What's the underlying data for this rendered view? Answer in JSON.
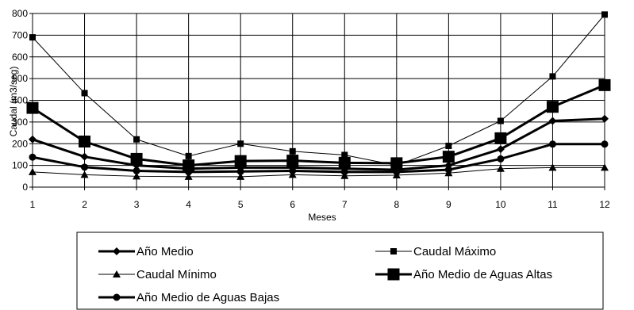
{
  "chart_data": {
    "type": "line",
    "xlabel": "Meses",
    "ylabel": "Caudal (m3/seg)",
    "x": [
      1,
      2,
      3,
      4,
      5,
      6,
      7,
      8,
      9,
      10,
      11,
      12
    ],
    "xlim": [
      1,
      12
    ],
    "ylim": [
      0,
      800
    ],
    "yticks": [
      0,
      100,
      200,
      300,
      400,
      500,
      600,
      700,
      800
    ],
    "grid": true,
    "legend_position": "bottom",
    "series": [
      {
        "name": "Año Medio",
        "marker": "diamond",
        "weight": "thick",
        "values": [
          220,
          140,
          100,
          85,
          90,
          90,
          85,
          80,
          100,
          175,
          305,
          315
        ]
      },
      {
        "name": "Caudal Máximo",
        "marker": "square-small",
        "weight": "thin",
        "values": [
          690,
          433,
          220,
          143,
          200,
          165,
          148,
          100,
          190,
          305,
          510,
          795
        ]
      },
      {
        "name": "Caudal Mínimo",
        "marker": "triangle",
        "weight": "thin",
        "values": [
          70,
          57,
          50,
          48,
          48,
          57,
          52,
          55,
          65,
          85,
          90,
          90
        ]
      },
      {
        "name": "Año Medio de Aguas Altas",
        "marker": "square-large",
        "weight": "thick",
        "values": [
          365,
          210,
          130,
          100,
          120,
          122,
          112,
          110,
          140,
          225,
          370,
          470
        ]
      },
      {
        "name": "Año Medio de Aguas Bajas",
        "marker": "circle",
        "weight": "thick",
        "values": [
          138,
          92,
          75,
          70,
          72,
          75,
          70,
          70,
          80,
          130,
          198,
          198
        ]
      }
    ]
  }
}
